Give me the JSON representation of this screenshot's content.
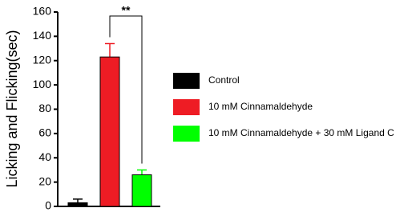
{
  "chart_data": {
    "type": "bar",
    "ylabel": "Licking and Flicking(sec)",
    "categories": [
      null
    ],
    "series": [
      {
        "name": "Control",
        "color": "#000000",
        "values": [
          3
        ],
        "errors": [
          3
        ]
      },
      {
        "name": "10 mM Cinnamaldehyde",
        "color": "#ee1c24",
        "values": [
          123
        ],
        "errors": [
          11
        ]
      },
      {
        "name": "10 mM Cinnamaldehyde + 30 mM Ligand C",
        "color": "#00ff00",
        "values": [
          26
        ],
        "errors": [
          4
        ]
      }
    ],
    "annotation": "**",
    "ylim": [
      0,
      160
    ],
    "yticks": [
      0,
      20,
      40,
      60,
      80,
      100,
      120,
      140,
      160
    ]
  }
}
